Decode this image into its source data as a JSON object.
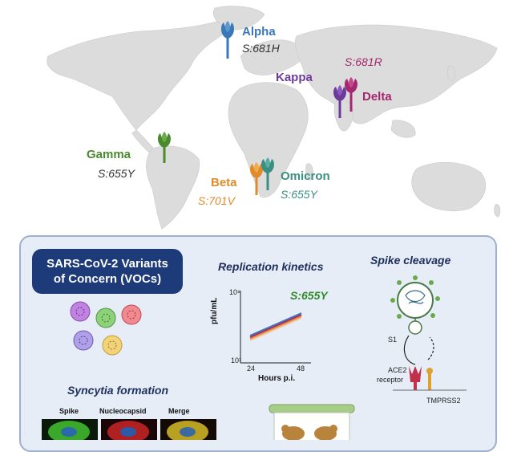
{
  "map": {
    "variants": [
      {
        "name": "Alpha",
        "mutation": "S:681H",
        "color": "#3a78b8"
      },
      {
        "name": "Kappa",
        "mutation": "S:681R",
        "color": "#6b3a9c"
      },
      {
        "name": "Delta",
        "mutation": "",
        "color": "#a5276f"
      },
      {
        "name": "Gamma",
        "mutation": "S:655Y",
        "color": "#4a8a2c"
      },
      {
        "name": "Beta",
        "mutation": "S:701V",
        "color": "#e08a2a"
      },
      {
        "name": "Omicron",
        "mutation": "S:655Y",
        "color": "#3a8f82"
      }
    ]
  },
  "panel": {
    "voc_line1": "SARS-CoV-2 Variants",
    "voc_line2": "of Concern (VOCs)",
    "replication_title": "Replication kinetics",
    "replication_mut": "S:655Y",
    "y_axis_label": "pfu/mL",
    "y_tick_top": "10⁸",
    "y_tick_bottom": "10¹",
    "x_tick_1": "24",
    "x_tick_2": "48",
    "x_axis_label": "Hours p.i.",
    "spike_title": "Spike cleavage",
    "s1_label": "S1",
    "ace2_label_1": "ACE2",
    "ace2_label_2": "receptor",
    "tmprss2_label": "TMPRSS2",
    "syncytia_title": "Syncytia formation",
    "img_label_1": "Spike",
    "img_label_2": "Nucleocapsid",
    "img_label_3": "Merge"
  }
}
